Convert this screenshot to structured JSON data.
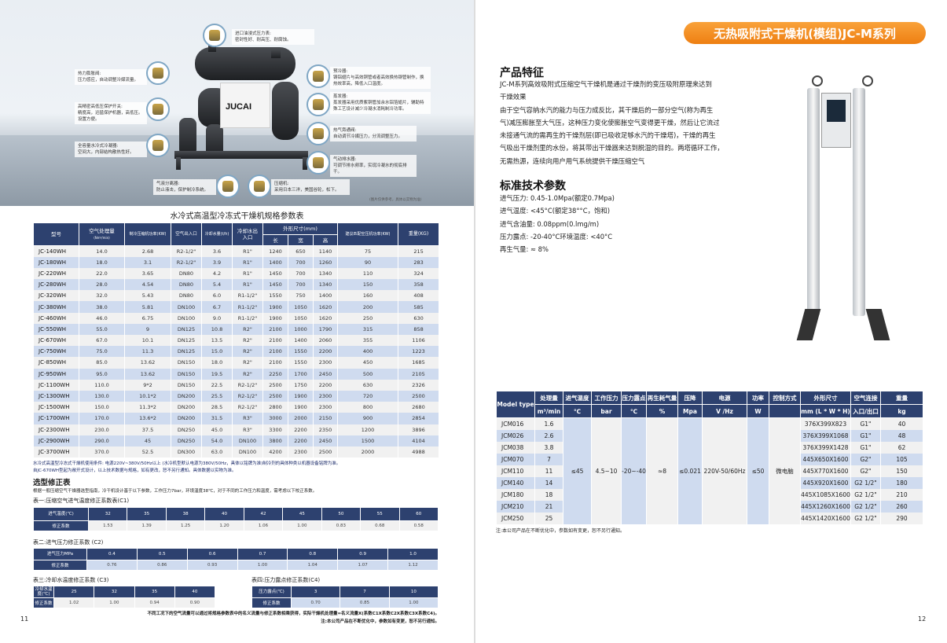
{
  "left": {
    "hero": {
      "brand": "JUCAI",
      "caption": "(图片仅供参考，具体以实物为准)",
      "callouts": [
        {
          "title": "进口油浸式压力表:",
          "desc": "密封性好、耐高压、耐腐蚀。"
        },
        {
          "title": "热力膨胀阀:",
          "desc": "压力感应，自动调整冷媒流量。"
        },
        {
          "title": "高精密高低压保护开关:",
          "desc": "精度高，迅猛保护机器，高低压。设置方便。"
        },
        {
          "title": "全容量水冷式冷凝器:",
          "desc": "空间大，内部结构散热性好。"
        },
        {
          "title": "预冷器:",
          "desc": "铸铝翅片与高效铜管或者高效换热钢管制作，换热效率高，降低入口温度。"
        },
        {
          "title": "蒸发器:",
          "desc": "蒸发器采用优质紫铜管加余水铝箔翅片，辅助特殊工艺设计减少冷凝水消耗制冷功率。"
        },
        {
          "title": "热气旁通阀:",
          "desc": "自动调节冷媒压力，分流调整压力。"
        },
        {
          "title": "气动排水器:",
          "desc": "可调节排水频率，实现冷凝水的彻底排干。"
        },
        {
          "title": "气液分离器:",
          "desc": "防止液击，保护制冷系统。"
        },
        {
          "title": "压缩机:",
          "desc": "采用日本三洋，美国谷轮，松下。"
        }
      ]
    },
    "spec_table": {
      "title": "水冷式高温型冷冻式干燥机规格参数表",
      "headers": {
        "model": "型号",
        "air_flow": "空气处理量",
        "air_flow_unit": "(Nm³/min)",
        "comp_power": "制冷压缩机功率(KW)",
        "air_port": "空气出入口",
        "water_flow": "冷却水量(t/h)",
        "water_port": "冷却水出入口",
        "dims": "外形尺寸(mm)",
        "length": "长",
        "width": "宽",
        "height": "高",
        "rec_power": "建议匹配空压机功率(KW)",
        "weight": "重量(KG)"
      },
      "rows": [
        [
          "JC-140WH",
          "14.0",
          "2.68",
          "R2-1/2\"",
          "3.6",
          "R1\"",
          "1240",
          "650",
          "1140",
          "75",
          "215"
        ],
        [
          "JC-180WH",
          "18.0",
          "3.1",
          "R2-1/2\"",
          "3.9",
          "R1\"",
          "1400",
          "700",
          "1260",
          "90",
          "283"
        ],
        [
          "JC-220WH",
          "22.0",
          "3.65",
          "DN80",
          "4.2",
          "R1\"",
          "1450",
          "700",
          "1340",
          "110",
          "324"
        ],
        [
          "JC-280WH",
          "28.0",
          "4.54",
          "DN80",
          "5.4",
          "R1\"",
          "1450",
          "700",
          "1340",
          "150",
          "358"
        ],
        [
          "JC-320WH",
          "32.0",
          "5.43",
          "DN80",
          "6.0",
          "R1-1/2\"",
          "1550",
          "750",
          "1400",
          "160",
          "408"
        ],
        [
          "JC-380WH",
          "38.0",
          "5.81",
          "DN100",
          "6.7",
          "R1-1/2\"",
          "1900",
          "1050",
          "1620",
          "200",
          "585"
        ],
        [
          "JC-460WH",
          "46.0",
          "6.75",
          "DN100",
          "9.0",
          "R1-1/2\"",
          "1900",
          "1050",
          "1620",
          "250",
          "630"
        ],
        [
          "JC-550WH",
          "55.0",
          "9",
          "DN125",
          "10.8",
          "R2\"",
          "2100",
          "1000",
          "1790",
          "315",
          "858"
        ],
        [
          "JC-670WH",
          "67.0",
          "10.1",
          "DN125",
          "13.5",
          "R2\"",
          "2100",
          "1400",
          "2060",
          "355",
          "1106"
        ],
        [
          "JC-750WH",
          "75.0",
          "11.3",
          "DN125",
          "15.0",
          "R2\"",
          "2100",
          "1550",
          "2200",
          "400",
          "1223"
        ],
        [
          "JC-850WH",
          "85.0",
          "13.62",
          "DN150",
          "18.0",
          "R2\"",
          "2100",
          "1550",
          "2300",
          "450",
          "1685"
        ],
        [
          "JC-950WH",
          "95.0",
          "13.62",
          "DN150",
          "19.5",
          "R2\"",
          "2250",
          "1700",
          "2450",
          "500",
          "2105"
        ],
        [
          "JC-1100WH",
          "110.0",
          "9*2",
          "DN150",
          "22.5",
          "R2-1/2\"",
          "2500",
          "1750",
          "2200",
          "630",
          "2326"
        ],
        [
          "JC-1300WH",
          "130.0",
          "10.1*2",
          "DN200",
          "25.5",
          "R2-1/2\"",
          "2500",
          "1900",
          "2300",
          "720",
          "2500"
        ],
        [
          "JC-1500WH",
          "150.0",
          "11.3*2",
          "DN200",
          "28.5",
          "R2-1/2\"",
          "2800",
          "1900",
          "2300",
          "800",
          "2680"
        ],
        [
          "JC-1700WH",
          "170.0",
          "13.6*2",
          "DN200",
          "31.5",
          "R3\"",
          "3000",
          "2000",
          "2150",
          "900",
          "2854"
        ],
        [
          "JC-2300WH",
          "230.0",
          "37.5",
          "DN250",
          "45.0",
          "R3\"",
          "3300",
          "2200",
          "2350",
          "1200",
          "3896"
        ],
        [
          "JC-2900WH",
          "290.0",
          "45",
          "DN250",
          "54.0",
          "DN100",
          "3800",
          "2200",
          "2450",
          "1500",
          "4104"
        ],
        [
          "JC-3700WH",
          "370.0",
          "52.5",
          "DN300",
          "63.0",
          "DN100",
          "4200",
          "2300",
          "2500",
          "2000",
          "4988"
        ]
      ],
      "notes": [
        "水冷式高温型冷冻式干燥机使用条件: 电源220V~380V/50Hz以上 (水冷机型默认电源为380V/50Hz，具体以铭牌为准)制冷剂的具体种类以机器设备铭牌为准。",
        "自JC-670WH型起为敞开式设计，以上技术数据与规格，如有更改，恕不另行通知。具体数据以实物为准。"
      ]
    },
    "correction": {
      "title": "选型修正表",
      "desc": "根据一般压缩空气干燥器选型指南，冷干机设计基于以下参数，工作压力7bar，环境温度38℃，对于不同的工作压力和温度，需考虑以下校正系数。",
      "t1": {
        "title": "表一:压缩空气进气温度修正系数表(C1)",
        "label1": "进气温度(℃)",
        "label2": "修正系数",
        "x": [
          "32",
          "35",
          "38",
          "40",
          "42",
          "45",
          "50",
          "55",
          "60"
        ],
        "y": [
          "1.53",
          "1.39",
          "1.25",
          "1.20",
          "1.06",
          "1.00",
          "0.83",
          "0.68",
          "0.58"
        ]
      },
      "t2": {
        "title": "表二:进气压力修正系数 (C2)",
        "label1": "进气压力MPa",
        "label2": "修正系数",
        "x": [
          "0.4",
          "0.5",
          "0.6",
          "0.7",
          "0.8",
          "0.9",
          "1.0"
        ],
        "y": [
          "0.76",
          "0.86",
          "0.93",
          "1.00",
          "1.04",
          "1.07",
          "1.12"
        ]
      },
      "t3": {
        "title": "表三:冷却水温度修正系数 (C3)",
        "label1": "冷却水温度(℃)",
        "label2": "修正系数",
        "x": [
          "25",
          "32",
          "35",
          "40"
        ],
        "y": [
          "1.02",
          "1.00",
          "0.94",
          "0.90"
        ]
      },
      "t4": {
        "title": "表四:压力露点修正系数(C4)",
        "label1": "压力露点(℃)",
        "label2": "修正系数",
        "x": [
          "3",
          "7",
          "10"
        ],
        "y": [
          "0.70",
          "0.85",
          "1.00"
        ]
      },
      "footer1": "不同工况下的空气流量可以通过将规格参数表中的名义流量与修正系数相乘获得，实际干燥机处理量=名义流量X(系数C1X系数C2X系数C3X系数C4)。",
      "footer2": "注:本公司产品在不断优化中，参数如有变更，恕不另行通知。"
    },
    "page_number": "11"
  },
  "right": {
    "title": "无热吸附式干燥机(模组)JC-M系列",
    "accent": "#f28b1e",
    "features": {
      "heading": "产品特征",
      "lines": [
        "JC-M系列高效吸附式压缩空气干燥机是通过干燥剂的变压吸附原理来达到",
        "干燥效果",
        "由于空气容纳水汽的能力与压力成反比，其干燥后的一部分空气(称为再生",
        "气)减压膨胀至大气压，这种压力变化使膨胀空气变得更干燥，然后让它流过",
        "未接通气流的需再生的干燥剂层(即已吸收足够水汽的干燥塔)，干燥的再生",
        "气吸出干燥剂里的水份，将其带出干燥器来达到脱湿的目的。两塔循环工作，",
        "无需热源，连续向用户用气系统提供干燥压缩空气"
      ]
    },
    "specs": {
      "heading": "标准技术参数",
      "lines": [
        "进气压力: 0.45-1.0Mpa(额定0.7Mpa)",
        "进气温度: <45°C(额定38°°C，饱和)",
        "进气含油量: 0.08ppm(0.lmg/m)",
        "压力露点: -20-40°C环境温度: <40°C",
        "再生气量: ≈ 8%"
      ]
    },
    "model_table": {
      "headers": [
        "Model type",
        "处理量",
        "进气温度",
        "工作压力",
        "压力露点",
        "再生耗气量",
        "压降",
        "电源",
        "功率",
        "控制方式",
        "外形尺寸",
        "空气连接",
        "重量"
      ],
      "units": [
        "m³/min",
        "℃",
        "bar",
        "℃",
        "%",
        "Mpa",
        "V /Hz",
        "W",
        "",
        "mm (L * W * H)",
        "入口/出口",
        "kg"
      ],
      "shared": [
        "≤45",
        "4.5~10",
        "-20~-40",
        "≈8",
        "≤0.021",
        "220V-50/60Hz",
        "≤50",
        "微电脑"
      ],
      "rows": [
        [
          "JCM016",
          "1.6",
          "376X399X823",
          "G1\"",
          "40"
        ],
        [
          "JCM026",
          "2.6",
          "376X399X1068",
          "G1\"",
          "48"
        ],
        [
          "JCM038",
          "3.8",
          "376X399X1428",
          "G1\"",
          "62"
        ],
        [
          "JCM070",
          "7",
          "445X650X1600",
          "G2\"",
          "105"
        ],
        [
          "JCM110",
          "11",
          "445X770X1600",
          "G2\"",
          "150"
        ],
        [
          "JCM140",
          "14",
          "445X920X1600",
          "G2 1/2\"",
          "180"
        ],
        [
          "JCM180",
          "18",
          "445X1085X1600",
          "G2 1/2\"",
          "210"
        ],
        [
          "JCM210",
          "21",
          "445X1260X1600",
          "G2 1/2\"",
          "260"
        ],
        [
          "JCM250",
          "25",
          "445X1420X1600",
          "G2 1/2\"",
          "290"
        ]
      ],
      "note": "注:本公司产品在不断优化中，参数如有变更，恕不另行通知。"
    },
    "page_number": "12"
  }
}
